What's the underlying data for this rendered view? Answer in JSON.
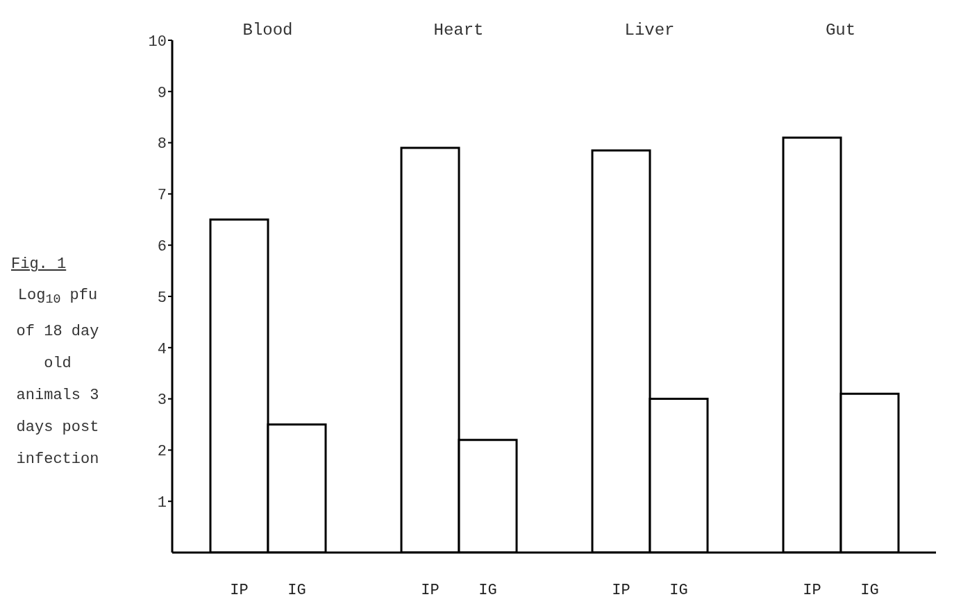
{
  "chart_data": {
    "type": "bar",
    "title": "Fig. 1",
    "ylabel": "Log$_{10}$ pfu of 18 day old animals 3 days post infection",
    "categories": [
      "Blood",
      "Heart",
      "Liver",
      "Gut"
    ],
    "series": [
      {
        "name": "IP",
        "color": "#000000",
        "values": [
          6.5,
          7.9,
          7.85,
          8.1
        ]
      },
      {
        "name": "IG",
        "color": "#000000",
        "values": [
          2.5,
          2.2,
          3.0,
          3.1
        ]
      }
    ],
    "ylim": [
      0,
      10
    ],
    "yticks": [
      1,
      2,
      3,
      4,
      5,
      6,
      7,
      8,
      9,
      10
    ],
    "grid": false
  }
}
